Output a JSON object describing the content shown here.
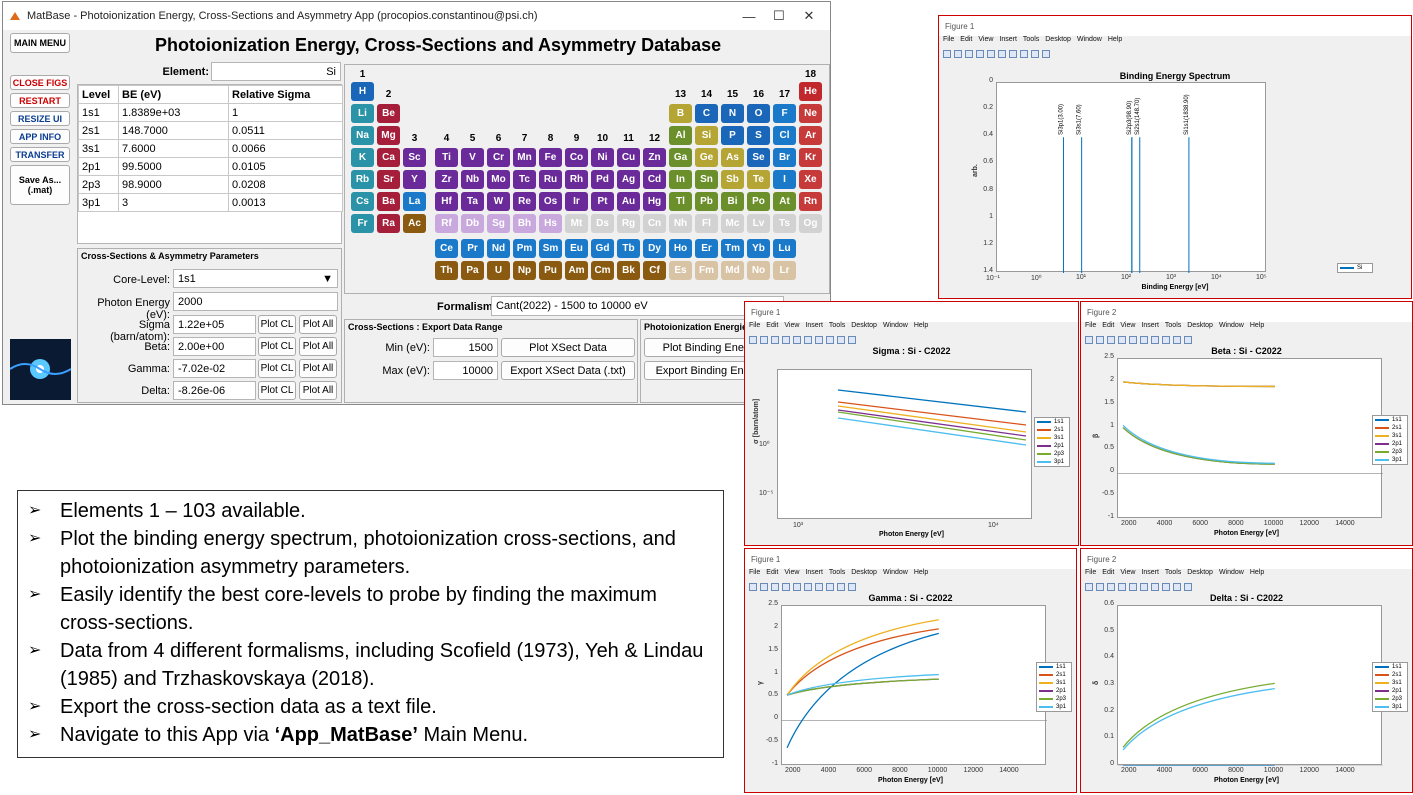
{
  "window": {
    "title": "MatBase - Photoionization Energy, Cross-Sections and Asymmetry App (procopios.constantinou@psi.ch)",
    "minimize": "—",
    "maximize": "☐",
    "close": "✕"
  },
  "app": {
    "heading": "Photoionization Energy, Cross-Sections and Asymmetry Database",
    "main_menu": "MAIN MENU",
    "side_buttons": {
      "close_figs": "CLOSE FIGS",
      "restart": "RESTART",
      "resize_ui": "RESIZE UI",
      "app_info": "APP INFO",
      "transfer": "TRANSFER",
      "save_as": "Save As...",
      "save_ext": "(.mat)"
    },
    "element_label": "Element:",
    "element_value": "Si"
  },
  "be_table": {
    "headers": [
      "Level",
      "BE (eV)",
      "Relative Sigma"
    ],
    "rows": [
      [
        "1s1",
        "1.8389e+03",
        "1"
      ],
      [
        "2s1",
        "148.7000",
        "0.0511"
      ],
      [
        "3s1",
        "7.6000",
        "0.0066"
      ],
      [
        "2p1",
        "99.5000",
        "0.0105"
      ],
      [
        "2p3",
        "98.9000",
        "0.0208"
      ],
      [
        "3p1",
        "3",
        "0.0013"
      ]
    ]
  },
  "params": {
    "title": "Cross-Sections & Asymmetry Parameters",
    "core_level_label": "Core-Level:",
    "core_level_value": "1s1",
    "photon_label": "Photon Energy (eV):",
    "photon_value": "2000",
    "rows": [
      {
        "label": "Sigma (barn/atom):",
        "value": "1.22e+05"
      },
      {
        "label": "Beta:",
        "value": "2.00e+00"
      },
      {
        "label": "Gamma:",
        "value": "-7.02e-02"
      },
      {
        "label": "Delta:",
        "value": "-8.26e-06"
      }
    ],
    "plot_cl": "Plot CL",
    "plot_all": "Plot All"
  },
  "periodic": {
    "groups": [
      "1",
      "2",
      "13",
      "14",
      "15",
      "16",
      "17",
      "18",
      "3",
      "4",
      "5",
      "6",
      "7",
      "8",
      "9",
      "10",
      "11",
      "12"
    ],
    "elements": [
      {
        "s": "H",
        "c": "#1a66b8",
        "r": 0,
        "g": 0
      },
      {
        "s": "He",
        "c": "#c0282c",
        "r": 0,
        "g": 17
      },
      {
        "s": "Li",
        "c": "#2a93a8",
        "r": 1,
        "g": 0
      },
      {
        "s": "Be",
        "c": "#a51e3a",
        "r": 1,
        "g": 1
      },
      {
        "s": "B",
        "c": "#b5a534",
        "r": 1,
        "g": 12
      },
      {
        "s": "C",
        "c": "#1a66b8",
        "r": 1,
        "g": 13
      },
      {
        "s": "N",
        "c": "#1a66b8",
        "r": 1,
        "g": 14
      },
      {
        "s": "O",
        "c": "#1a66b8",
        "r": 1,
        "g": 15
      },
      {
        "s": "F",
        "c": "#1a7ac9",
        "r": 1,
        "g": 16
      },
      {
        "s": "Ne",
        "c": "#c73a3a",
        "r": 1,
        "g": 17
      },
      {
        "s": "Na",
        "c": "#2a93a8",
        "r": 2,
        "g": 0
      },
      {
        "s": "Mg",
        "c": "#a51e3a",
        "r": 2,
        "g": 1
      },
      {
        "s": "Al",
        "c": "#6b8f2a",
        "r": 2,
        "g": 12
      },
      {
        "s": "Si",
        "c": "#b5a534",
        "r": 2,
        "g": 13
      },
      {
        "s": "P",
        "c": "#1a66b8",
        "r": 2,
        "g": 14
      },
      {
        "s": "S",
        "c": "#1a66b8",
        "r": 2,
        "g": 15
      },
      {
        "s": "Cl",
        "c": "#1a7ac9",
        "r": 2,
        "g": 16
      },
      {
        "s": "Ar",
        "c": "#c73a3a",
        "r": 2,
        "g": 17
      },
      {
        "s": "K",
        "c": "#2a93a8",
        "r": 3,
        "g": 0
      },
      {
        "s": "Ca",
        "c": "#a51e3a",
        "r": 3,
        "g": 1
      },
      {
        "s": "Sc",
        "c": "#6a2a9a",
        "r": 3,
        "g": 2
      },
      {
        "s": "Ti",
        "c": "#6a2a9a",
        "r": 3,
        "g": 3
      },
      {
        "s": "V",
        "c": "#6a2a9a",
        "r": 3,
        "g": 4
      },
      {
        "s": "Cr",
        "c": "#6a2a9a",
        "r": 3,
        "g": 5
      },
      {
        "s": "Mn",
        "c": "#6a2a9a",
        "r": 3,
        "g": 6
      },
      {
        "s": "Fe",
        "c": "#6a2a9a",
        "r": 3,
        "g": 7
      },
      {
        "s": "Co",
        "c": "#6a2a9a",
        "r": 3,
        "g": 8
      },
      {
        "s": "Ni",
        "c": "#6a2a9a",
        "r": 3,
        "g": 9
      },
      {
        "s": "Cu",
        "c": "#6a2a9a",
        "r": 3,
        "g": 10
      },
      {
        "s": "Zn",
        "c": "#6a2a9a",
        "r": 3,
        "g": 11
      },
      {
        "s": "Ga",
        "c": "#6b8f2a",
        "r": 3,
        "g": 12
      },
      {
        "s": "Ge",
        "c": "#b5a534",
        "r": 3,
        "g": 13
      },
      {
        "s": "As",
        "c": "#b5a534",
        "r": 3,
        "g": 14
      },
      {
        "s": "Se",
        "c": "#1a66b8",
        "r": 3,
        "g": 15
      },
      {
        "s": "Br",
        "c": "#1a7ac9",
        "r": 3,
        "g": 16
      },
      {
        "s": "Kr",
        "c": "#c73a3a",
        "r": 3,
        "g": 17
      },
      {
        "s": "Rb",
        "c": "#2a93a8",
        "r": 4,
        "g": 0
      },
      {
        "s": "Sr",
        "c": "#a51e3a",
        "r": 4,
        "g": 1
      },
      {
        "s": "Y",
        "c": "#6a2a9a",
        "r": 4,
        "g": 2
      },
      {
        "s": "Zr",
        "c": "#6a2a9a",
        "r": 4,
        "g": 3
      },
      {
        "s": "Nb",
        "c": "#6a2a9a",
        "r": 4,
        "g": 4
      },
      {
        "s": "Mo",
        "c": "#6a2a9a",
        "r": 4,
        "g": 5
      },
      {
        "s": "Tc",
        "c": "#6a2a9a",
        "r": 4,
        "g": 6
      },
      {
        "s": "Ru",
        "c": "#6a2a9a",
        "r": 4,
        "g": 7
      },
      {
        "s": "Rh",
        "c": "#6a2a9a",
        "r": 4,
        "g": 8
      },
      {
        "s": "Pd",
        "c": "#6a2a9a",
        "r": 4,
        "g": 9
      },
      {
        "s": "Ag",
        "c": "#6a2a9a",
        "r": 4,
        "g": 10
      },
      {
        "s": "Cd",
        "c": "#6a2a9a",
        "r": 4,
        "g": 11
      },
      {
        "s": "In",
        "c": "#6b8f2a",
        "r": 4,
        "g": 12
      },
      {
        "s": "Sn",
        "c": "#6b8f2a",
        "r": 4,
        "g": 13
      },
      {
        "s": "Sb",
        "c": "#b5a534",
        "r": 4,
        "g": 14
      },
      {
        "s": "Te",
        "c": "#b5a534",
        "r": 4,
        "g": 15
      },
      {
        "s": "I",
        "c": "#1a7ac9",
        "r": 4,
        "g": 16
      },
      {
        "s": "Xe",
        "c": "#c73a3a",
        "r": 4,
        "g": 17
      },
      {
        "s": "Cs",
        "c": "#2a93a8",
        "r": 5,
        "g": 0
      },
      {
        "s": "Ba",
        "c": "#a51e3a",
        "r": 5,
        "g": 1
      },
      {
        "s": "La",
        "c": "#1a7ac9",
        "r": 5,
        "g": 2
      },
      {
        "s": "Hf",
        "c": "#6a2a9a",
        "r": 5,
        "g": 3
      },
      {
        "s": "Ta",
        "c": "#6a2a9a",
        "r": 5,
        "g": 4
      },
      {
        "s": "W",
        "c": "#6a2a9a",
        "r": 5,
        "g": 5
      },
      {
        "s": "Re",
        "c": "#6a2a9a",
        "r": 5,
        "g": 6
      },
      {
        "s": "Os",
        "c": "#6a2a9a",
        "r": 5,
        "g": 7
      },
      {
        "s": "Ir",
        "c": "#6a2a9a",
        "r": 5,
        "g": 8
      },
      {
        "s": "Pt",
        "c": "#6a2a9a",
        "r": 5,
        "g": 9
      },
      {
        "s": "Au",
        "c": "#6a2a9a",
        "r": 5,
        "g": 10
      },
      {
        "s": "Hg",
        "c": "#6a2a9a",
        "r": 5,
        "g": 11
      },
      {
        "s": "Tl",
        "c": "#6b8f2a",
        "r": 5,
        "g": 12
      },
      {
        "s": "Pb",
        "c": "#6b8f2a",
        "r": 5,
        "g": 13
      },
      {
        "s": "Bi",
        "c": "#6b8f2a",
        "r": 5,
        "g": 14
      },
      {
        "s": "Po",
        "c": "#6b8f2a",
        "r": 5,
        "g": 15
      },
      {
        "s": "At",
        "c": "#6b8f2a",
        "r": 5,
        "g": 16
      },
      {
        "s": "Rn",
        "c": "#c73a3a",
        "r": 5,
        "g": 17
      },
      {
        "s": "Fr",
        "c": "#2a93a8",
        "r": 6,
        "g": 0
      },
      {
        "s": "Ra",
        "c": "#a51e3a",
        "r": 6,
        "g": 1
      },
      {
        "s": "Ac",
        "c": "#8a5a10",
        "r": 6,
        "g": 2
      },
      {
        "s": "Rf",
        "c": "#c9a8de",
        "r": 6,
        "g": 3
      },
      {
        "s": "Db",
        "c": "#c9a8de",
        "r": 6,
        "g": 4
      },
      {
        "s": "Sg",
        "c": "#c9a8de",
        "r": 6,
        "g": 5
      },
      {
        "s": "Bh",
        "c": "#c9a8de",
        "r": 6,
        "g": 6
      },
      {
        "s": "Hs",
        "c": "#c9a8de",
        "r": 6,
        "g": 7
      },
      {
        "s": "Mt",
        "c": "#d2d2d2",
        "r": 6,
        "g": 8
      },
      {
        "s": "Ds",
        "c": "#d2d2d2",
        "r": 6,
        "g": 9
      },
      {
        "s": "Rg",
        "c": "#d2d2d2",
        "r": 6,
        "g": 10
      },
      {
        "s": "Cn",
        "c": "#d2d2d2",
        "r": 6,
        "g": 11
      },
      {
        "s": "Nh",
        "c": "#d2d2d2",
        "r": 6,
        "g": 12
      },
      {
        "s": "Fl",
        "c": "#d2d2d2",
        "r": 6,
        "g": 13
      },
      {
        "s": "Mc",
        "c": "#d2d2d2",
        "r": 6,
        "g": 14
      },
      {
        "s": "Lv",
        "c": "#d2d2d2",
        "r": 6,
        "g": 15
      },
      {
        "s": "Ts",
        "c": "#d2d2d2",
        "r": 6,
        "g": 16
      },
      {
        "s": "Og",
        "c": "#d2d2d2",
        "r": 6,
        "g": 17
      },
      {
        "s": "Ce",
        "c": "#1a7ac9",
        "r": 7,
        "g": 3
      },
      {
        "s": "Pr",
        "c": "#1a7ac9",
        "r": 7,
        "g": 4
      },
      {
        "s": "Nd",
        "c": "#1a7ac9",
        "r": 7,
        "g": 5
      },
      {
        "s": "Pm",
        "c": "#1a7ac9",
        "r": 7,
        "g": 6
      },
      {
        "s": "Sm",
        "c": "#1a7ac9",
        "r": 7,
        "g": 7
      },
      {
        "s": "Eu",
        "c": "#1a7ac9",
        "r": 7,
        "g": 8
      },
      {
        "s": "Gd",
        "c": "#1a7ac9",
        "r": 7,
        "g": 9
      },
      {
        "s": "Tb",
        "c": "#1a7ac9",
        "r": 7,
        "g": 10
      },
      {
        "s": "Dy",
        "c": "#1a7ac9",
        "r": 7,
        "g": 11
      },
      {
        "s": "Ho",
        "c": "#1a7ac9",
        "r": 7,
        "g": 12
      },
      {
        "s": "Er",
        "c": "#1a7ac9",
        "r": 7,
        "g": 13
      },
      {
        "s": "Tm",
        "c": "#1a7ac9",
        "r": 7,
        "g": 14
      },
      {
        "s": "Yb",
        "c": "#1a7ac9",
        "r": 7,
        "g": 15
      },
      {
        "s": "Lu",
        "c": "#1a7ac9",
        "r": 7,
        "g": 16
      },
      {
        "s": "Th",
        "c": "#8a5a10",
        "r": 8,
        "g": 3
      },
      {
        "s": "Pa",
        "c": "#8a5a10",
        "r": 8,
        "g": 4
      },
      {
        "s": "U",
        "c": "#8a5a10",
        "r": 8,
        "g": 5
      },
      {
        "s": "Np",
        "c": "#8a5a10",
        "r": 8,
        "g": 6
      },
      {
        "s": "Pu",
        "c": "#8a5a10",
        "r": 8,
        "g": 7
      },
      {
        "s": "Am",
        "c": "#8a5a10",
        "r": 8,
        "g": 8
      },
      {
        "s": "Cm",
        "c": "#8a5a10",
        "r": 8,
        "g": 9
      },
      {
        "s": "Bk",
        "c": "#8a5a10",
        "r": 8,
        "g": 10
      },
      {
        "s": "Cf",
        "c": "#8a5a10",
        "r": 8,
        "g": 11
      },
      {
        "s": "Es",
        "c": "#d9c3a5",
        "r": 8,
        "g": 12
      },
      {
        "s": "Fm",
        "c": "#d9c3a5",
        "r": 8,
        "g": 13
      },
      {
        "s": "Md",
        "c": "#d9c3a5",
        "r": 8,
        "g": 14
      },
      {
        "s": "No",
        "c": "#d9c3a5",
        "r": 8,
        "g": 15
      },
      {
        "s": "Lr",
        "c": "#d9c3a5",
        "r": 8,
        "g": 16
      }
    ]
  },
  "formalism": {
    "label": "Formalism:",
    "value": "Cant(2022) - 1500 to 10000 eV"
  },
  "export": {
    "title": "Cross-Sections : Export Data Range",
    "min_label": "Min (eV):",
    "min_value": "1500",
    "max_label": "Max (eV):",
    "max_value": "10000",
    "plot_xsect": "Plot XSect Data",
    "export_xsect": "Export XSect Data (.txt)"
  },
  "energies": {
    "title": "Photoionization Energies",
    "plot_be": "Plot Binding Energy Spectrum",
    "export_be": "Export Binding Energy Data (.txt)"
  },
  "info": {
    "arrow": "➢",
    "items": [
      "Elements 1 – 103 available.",
      "Plot the binding energy spectrum, photoionization cross-sections, and photoionization asymmetry parameters.",
      "Easily identify the best core-levels to probe by finding the maximum cross-sections.",
      "Data from 4 different formalisms, including Scofield (1973), Yeh & Lindau (1985) and Trzhaskovskaya (2018).",
      "Export the cross-section data as a text file."
    ],
    "last_pre": "Navigate to this App via ",
    "last_bold": "‘App_MatBase’",
    "last_post": " Main Menu."
  },
  "figure_menu": [
    "File",
    "Edit",
    "View",
    "Insert",
    "Tools",
    "Desktop",
    "Window",
    "Help"
  ],
  "figures": {
    "be": {
      "window": "Figure 1",
      "title": "Binding Energy Spectrum",
      "xlabel": "Binding Energy [eV]",
      "ylabel": "arb.",
      "legend": "Si",
      "yticks": [
        "0",
        "0.2",
        "0.4",
        "0.6",
        "0.8",
        "1",
        "1.2",
        "1.4"
      ],
      "xticks": [
        "10⁻¹",
        "10⁰",
        "10¹",
        "10²",
        "10³",
        "10⁴",
        "10⁵"
      ],
      "peak_labels": [
        "Si3p1(3.00)",
        "Si3s1(7.60)",
        "Si2p3(98.90)",
        "Si2s1(148.70)",
        "Si1s1(1838.90)"
      ]
    },
    "sigma": {
      "window": "Figure 1",
      "title": "Sigma : Si - C2022",
      "xlabel": "Photon Energy [eV]",
      "ylabel": "σ [barn/atom]",
      "yticks": [
        "10⁰",
        "10⁻⁵"
      ],
      "xticks": [
        "10³",
        "10⁴"
      ]
    },
    "beta": {
      "window": "Figure 2",
      "title": "Beta : Si - C2022",
      "xlabel": "Photon Energy [eV]",
      "ylabel": "β",
      "yticks": [
        "2.5",
        "2",
        "1.5",
        "1",
        "0.5",
        "0",
        "-0.5",
        "-1"
      ],
      "xticks": [
        "2000",
        "4000",
        "6000",
        "8000",
        "10000",
        "12000",
        "14000"
      ]
    },
    "gamma": {
      "window": "Figure 1",
      "title": "Gamma : Si - C2022",
      "xlabel": "Photon Energy [eV]",
      "ylabel": "γ",
      "yticks": [
        "2.5",
        "2",
        "1.5",
        "1",
        "0.5",
        "0",
        "-0.5",
        "-1"
      ],
      "xticks": [
        "2000",
        "4000",
        "6000",
        "8000",
        "10000",
        "12000",
        "14000"
      ]
    },
    "delta": {
      "window": "Figure 2",
      "title": "Delta : Si - C2022",
      "xlabel": "Photon Energy [eV]",
      "ylabel": "δ",
      "yticks": [
        "0.6",
        "0.5",
        "0.4",
        "0.3",
        "0.2",
        "0.1",
        "0"
      ],
      "xticks": [
        "2000",
        "4000",
        "6000",
        "8000",
        "10000",
        "12000",
        "14000"
      ]
    },
    "legend_levels": [
      "1s1",
      "2s1",
      "3s1",
      "2p1",
      "2p3",
      "3p1"
    ]
  },
  "colors": {
    "c1s1": "#0072bd",
    "c2s1": "#d95319",
    "c3s1": "#edb120",
    "c2p1": "#7e2f8e",
    "c2p3": "#77ac30",
    "c3p1": "#4dbeee"
  },
  "chart_data": [
    {
      "type": "bar",
      "title": "Binding Energy Spectrum",
      "xlabel": "Binding Energy [eV]",
      "ylabel": "arb.",
      "xscale": "log",
      "x": [
        3.0,
        7.6,
        98.9,
        99.5,
        148.7,
        1838.9
      ],
      "values": [
        1,
        1,
        1,
        1,
        1,
        1
      ],
      "ylim": [
        0,
        1.4
      ],
      "xlim": [
        0.1,
        100000
      ]
    },
    {
      "type": "line",
      "title": "Beta : Si - C2022",
      "xlabel": "Photon Energy [eV]",
      "ylabel": "β",
      "x": [
        1500,
        10000
      ],
      "series": [
        {
          "name": "1s1",
          "values": [
            2.0,
            1.9
          ]
        },
        {
          "name": "2s1",
          "values": [
            2.0,
            1.9
          ]
        },
        {
          "name": "3s1",
          "values": [
            2.0,
            1.9
          ]
        },
        {
          "name": "2p1",
          "values": [
            1.0,
            0.2
          ]
        },
        {
          "name": "2p3",
          "values": [
            1.0,
            0.2
          ]
        },
        {
          "name": "3p1",
          "values": [
            1.05,
            0.22
          ]
        }
      ]
    },
    {
      "type": "line",
      "title": "Gamma : Si - C2022",
      "xlabel": "Photon Energy [eV]",
      "ylabel": "γ",
      "x": [
        1500,
        10000
      ],
      "series": [
        {
          "name": "1s1",
          "values": [
            -0.6,
            1.9
          ]
        },
        {
          "name": "2s1",
          "values": [
            0.55,
            2.0
          ]
        },
        {
          "name": "3s1",
          "values": [
            0.55,
            2.2
          ]
        },
        {
          "name": "2p1",
          "values": [
            0.55,
            0.9
          ]
        },
        {
          "name": "2p3",
          "values": [
            0.55,
            0.9
          ]
        },
        {
          "name": "3p1",
          "values": [
            0.55,
            1.0
          ]
        }
      ]
    },
    {
      "type": "line",
      "title": "Delta : Si - C2022",
      "xlabel": "Photon Energy [eV]",
      "ylabel": "δ",
      "x": [
        1500,
        10000
      ],
      "series": [
        {
          "name": "1s1",
          "values": [
            0,
            0
          ]
        },
        {
          "name": "2p3",
          "values": [
            0.07,
            0.31
          ]
        },
        {
          "name": "3p1",
          "values": [
            0.06,
            0.29
          ]
        }
      ]
    }
  ]
}
